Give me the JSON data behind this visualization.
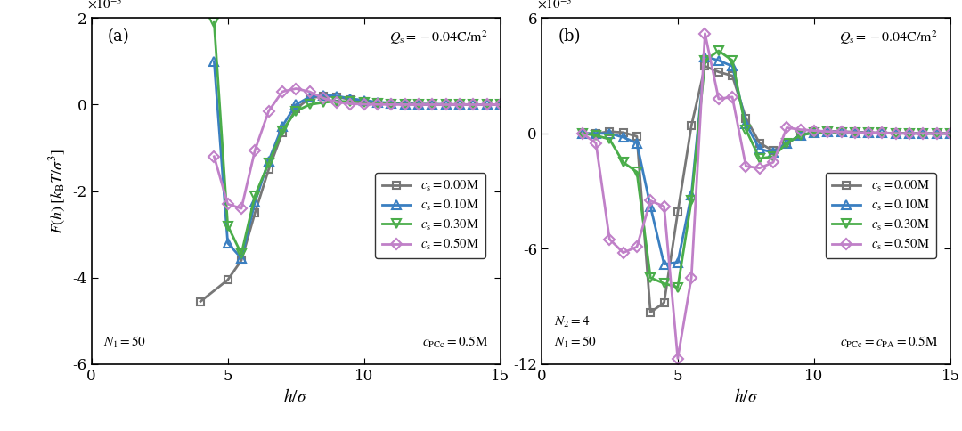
{
  "panel_a": {
    "title_annotation": "$Q_{\\mathrm{s}} = -0.04\\mathrm{C/m}^2$",
    "bottom_left": "$N_1 = 50$",
    "bottom_right": "$c_{\\mathrm{PCc}} = 0.5\\mathrm{M}$",
    "ylim": [
      -0.006,
      0.002
    ],
    "xlim": [
      0,
      15
    ],
    "yticks": [
      -0.006,
      -0.004,
      -0.002,
      0,
      0.002
    ],
    "ytick_labels": [
      "-6",
      "-4",
      "-2",
      "0",
      "2"
    ],
    "xticks": [
      0,
      5,
      10,
      15
    ],
    "label": "(a)",
    "series": [
      {
        "label": "$c_{\\mathrm{s}} = 0.00\\mathrm{M}$",
        "color": "#777777",
        "lw": 2.0,
        "marker": "s",
        "x": [
          4.0,
          5.0,
          5.5,
          6.0,
          6.5,
          7.0,
          7.5,
          8.0,
          8.5,
          9.0,
          9.5,
          10.0,
          10.5,
          11.0,
          11.5,
          12.0,
          12.5,
          13.0,
          13.5,
          14.0,
          14.5,
          15.0
        ],
        "y": [
          -0.00455,
          -0.00405,
          -0.0036,
          -0.0025,
          -0.0015,
          -0.00065,
          -0.0001,
          0.00015,
          0.0002,
          0.00018,
          0.00012,
          8e-05,
          5e-05,
          3e-05,
          2e-05,
          1e-05,
          8e-06,
          5e-06,
          3e-06,
          2e-06,
          1e-06,
          1e-06
        ]
      },
      {
        "label": "$c_{\\mathrm{s}} = 0.10\\mathrm{M}$",
        "color": "#3a7fc1",
        "lw": 2.0,
        "marker": "^",
        "x": [
          4.5,
          5.0,
          5.5,
          6.0,
          6.5,
          7.0,
          7.5,
          8.0,
          8.5,
          9.0,
          9.5,
          10.0,
          10.5,
          11.0,
          11.5,
          12.0,
          12.5,
          13.0,
          13.5,
          14.0,
          14.5,
          15.0
        ],
        "y": [
          0.001,
          -0.0032,
          -0.00355,
          -0.00225,
          -0.0013,
          -0.0005,
          0.0,
          0.00018,
          0.00022,
          0.0002,
          0.00014,
          0.0001,
          6e-05,
          4e-05,
          2e-05,
          1e-05,
          8e-06,
          5e-06,
          3e-06,
          2e-06,
          1e-06,
          1e-06
        ]
      },
      {
        "label": "$c_{\\mathrm{s}} = 0.30\\mathrm{M}$",
        "color": "#4aad4a",
        "lw": 2.0,
        "marker": "v",
        "x": [
          4.5,
          5.0,
          5.5,
          6.0,
          6.5,
          7.0,
          7.5,
          8.0,
          8.5,
          9.0,
          9.5,
          10.0,
          10.5,
          11.0,
          11.5,
          12.0,
          12.5,
          13.0,
          13.5,
          14.0,
          14.5,
          15.0
        ],
        "y": [
          0.0019,
          -0.0028,
          -0.00345,
          -0.0021,
          -0.00135,
          -0.0006,
          -0.00015,
          0.0,
          5e-05,
          8e-05,
          7e-05,
          5e-05,
          3e-05,
          2e-05,
          1e-05,
          8e-06,
          5e-06,
          3e-06,
          2e-06,
          1e-06,
          1e-06,
          0.0
        ]
      },
      {
        "label": "$c_{\\mathrm{s}} = 0.50\\mathrm{M}$",
        "color": "#c080c8",
        "lw": 2.0,
        "marker": "D",
        "x": [
          4.5,
          5.0,
          5.5,
          6.0,
          6.5,
          7.0,
          7.5,
          8.0,
          8.5,
          9.0,
          9.5,
          10.0,
          10.5,
          11.0,
          11.5,
          12.0,
          12.5,
          13.0,
          13.5,
          14.0,
          14.5,
          15.0
        ],
        "y": [
          -0.0012,
          -0.0023,
          -0.0024,
          -0.00105,
          -0.00015,
          0.0003,
          0.00037,
          0.0003,
          0.00015,
          6e-05,
          2e-05,
          1e-05,
          5e-06,
          3e-06,
          2e-06,
          1e-06,
          1e-06,
          0.0,
          0.0,
          0.0,
          0.0,
          0.0
        ]
      }
    ]
  },
  "panel_b": {
    "title_annotation": "$Q_{\\mathrm{s}} = -0.04\\mathrm{C/m}^2$",
    "bottom_left_1": "$N_2 = 4$",
    "bottom_left_2": "$N_1 = 50$",
    "bottom_right": "$c_{\\mathrm{PCc}} = c_{\\mathrm{PA}} = 0.5\\mathrm{M}$",
    "ylim": [
      -0.012,
      0.006
    ],
    "xlim": [
      0,
      15
    ],
    "yticks": [
      -0.012,
      -0.006,
      0,
      0.006
    ],
    "ytick_labels": [
      "-12",
      "-6",
      "0",
      "6"
    ],
    "xticks": [
      0,
      5,
      10,
      15
    ],
    "label": "(b)",
    "series": [
      {
        "label": "$c_{\\mathrm{s}} = 0.00\\mathrm{M}$",
        "color": "#777777",
        "lw": 2.0,
        "marker": "s",
        "x": [
          1.5,
          2.0,
          2.5,
          3.0,
          3.5,
          4.0,
          4.5,
          5.0,
          5.5,
          6.0,
          6.5,
          7.0,
          7.5,
          8.0,
          8.5,
          9.0,
          9.5,
          10.0,
          10.5,
          11.0,
          11.5,
          12.0,
          12.5,
          13.0,
          13.5,
          14.0,
          14.5,
          15.0
        ],
        "y": [
          0.0,
          0.0,
          0.0001,
          5e-05,
          -0.00015,
          -0.0093,
          -0.0088,
          -0.0041,
          0.0004,
          0.0035,
          0.0032,
          0.003,
          0.0008,
          -0.0005,
          -0.0009,
          -0.0005,
          -0.0001,
          0.0001,
          0.00012,
          0.0001,
          8e-05,
          5e-05,
          3e-05,
          2e-05,
          1e-05,
          5e-06,
          3e-06,
          1e-06
        ]
      },
      {
        "label": "$c_{\\mathrm{s}} = 0.10\\mathrm{M}$",
        "color": "#3a7fc1",
        "lw": 2.0,
        "marker": "^",
        "x": [
          1.5,
          2.0,
          2.5,
          3.0,
          3.5,
          4.0,
          4.5,
          5.0,
          5.5,
          6.0,
          6.5,
          7.0,
          7.5,
          8.0,
          8.5,
          9.0,
          9.5,
          10.0,
          10.5,
          11.0,
          11.5,
          12.0,
          12.5,
          13.0,
          13.5,
          14.0,
          14.5,
          15.0
        ],
        "y": [
          0.0,
          0.0,
          0.0,
          -0.0002,
          -0.0005,
          -0.0038,
          -0.0068,
          -0.0067,
          -0.0032,
          0.004,
          0.0038,
          0.0035,
          0.0005,
          -0.0008,
          -0.001,
          -0.0005,
          -0.0001,
          5e-05,
          8e-05,
          8e-05,
          5e-05,
          3e-05,
          2e-05,
          1e-05,
          5e-06,
          3e-06,
          2e-06,
          1e-06
        ]
      },
      {
        "label": "$c_{\\mathrm{s}} = 0.30\\mathrm{M}$",
        "color": "#4aad4a",
        "lw": 2.0,
        "marker": "v",
        "x": [
          1.5,
          2.0,
          2.5,
          3.0,
          3.5,
          4.0,
          4.5,
          5.0,
          5.5,
          6.0,
          6.5,
          7.0,
          7.5,
          8.0,
          8.5,
          9.0,
          9.5,
          10.0,
          10.5,
          11.0,
          11.5,
          12.0,
          12.5,
          13.0,
          13.5,
          14.0,
          14.5,
          15.0
        ],
        "y": [
          0.0,
          -0.0001,
          -0.0003,
          -0.0015,
          -0.002,
          -0.0075,
          -0.0078,
          -0.008,
          -0.0035,
          0.0038,
          0.0043,
          0.0038,
          0.0002,
          -0.0013,
          -0.0012,
          -0.0005,
          -0.0001,
          5e-05,
          7e-05,
          6e-05,
          4e-05,
          3e-05,
          2e-05,
          1e-05,
          5e-06,
          3e-06,
          2e-06,
          1e-06
        ]
      },
      {
        "label": "$c_{\\mathrm{s}} = 0.50\\mathrm{M}$",
        "color": "#c080c8",
        "lw": 2.0,
        "marker": "D",
        "x": [
          1.5,
          2.0,
          2.5,
          3.0,
          3.5,
          4.0,
          4.5,
          5.0,
          5.5,
          6.0,
          6.5,
          7.0,
          7.5,
          8.0,
          8.5,
          9.0,
          9.5,
          10.0,
          10.5,
          11.0,
          11.5,
          12.0,
          12.5,
          13.0,
          13.5,
          14.0,
          14.5,
          15.0
        ],
        "y": [
          0.0,
          -0.0005,
          -0.0055,
          -0.0062,
          -0.0059,
          -0.0035,
          -0.0038,
          -0.0117,
          -0.0075,
          0.0052,
          0.0018,
          0.0019,
          -0.0017,
          -0.0018,
          -0.0015,
          0.0003,
          0.0002,
          0.00015,
          0.0001,
          8e-05,
          5e-05,
          3e-05,
          2e-05,
          1e-05,
          5e-06,
          3e-06,
          2e-06,
          1e-06
        ]
      }
    ]
  }
}
